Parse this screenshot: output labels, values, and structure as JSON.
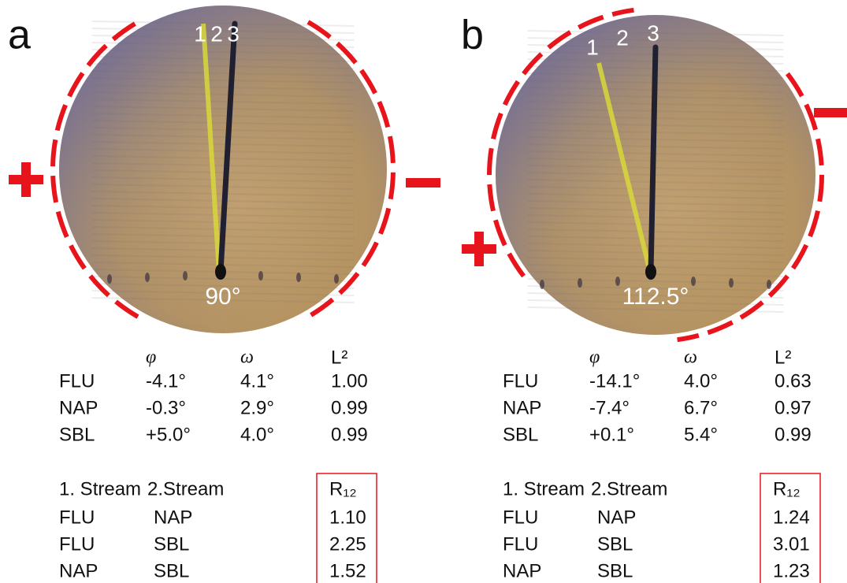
{
  "panels": [
    {
      "label": "a",
      "streams": [
        "1",
        "2",
        "3"
      ],
      "angle": "90°",
      "table1": {
        "header": [
          "φ",
          "ω",
          "L²"
        ],
        "rows": [
          [
            "FLU",
            "-4.1°",
            "4.1°",
            "1.00"
          ],
          [
            "NAP",
            "-0.3°",
            "2.9°",
            "0.99"
          ],
          [
            "SBL",
            "+5.0°",
            "4.0°",
            "0.99"
          ]
        ]
      },
      "table2": {
        "header": [
          "1. Stream",
          "2.Stream",
          "R₁₂"
        ],
        "rows": [
          [
            "FLU",
            "NAP",
            "1.10"
          ],
          [
            "FLU",
            "SBL",
            "2.25"
          ],
          [
            "NAP",
            "SBL",
            "1.52"
          ]
        ]
      }
    },
    {
      "label": "b",
      "streams": [
        "1",
        "2",
        "3"
      ],
      "angle": "112.5°",
      "table1": {
        "header": [
          "φ",
          "ω",
          "L²"
        ],
        "rows": [
          [
            "FLU",
            "-14.1°",
            "4.0°",
            "0.63"
          ],
          [
            "NAP",
            "-7.4°",
            "6.7°",
            "0.97"
          ],
          [
            "SBL",
            "+0.1°",
            "5.4°",
            "0.99"
          ]
        ]
      },
      "table2": {
        "header": [
          "1. Stream",
          "2.Stream",
          "R₁₂"
        ],
        "rows": [
          [
            "FLU",
            "NAP",
            "1.24"
          ],
          [
            "FLU",
            "SBL",
            "3.01"
          ],
          [
            "NAP",
            "SBL",
            "1.23"
          ]
        ]
      }
    }
  ]
}
